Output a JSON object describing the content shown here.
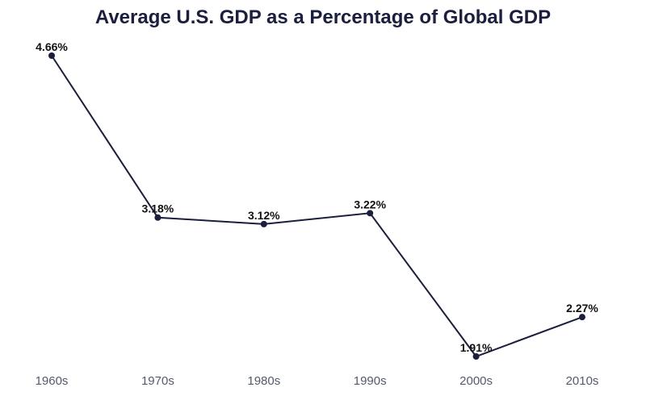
{
  "chart_data": {
    "type": "line",
    "title": "Average U.S. GDP as a Percentage of Global GDP",
    "xlabel": "",
    "ylabel": "",
    "categories": [
      "1960s",
      "1970s",
      "1980s",
      "1990s",
      "2000s",
      "2010s"
    ],
    "values": [
      4.66,
      3.18,
      3.12,
      3.22,
      1.91,
      2.27
    ],
    "data_labels": [
      "4.66%",
      "3.18%",
      "3.12%",
      "3.22%",
      "1.91%",
      "2.27%"
    ],
    "ylim": [
      1.91,
      4.66
    ],
    "grid": false,
    "legend": "none",
    "line_color": "#1b1e3d"
  }
}
